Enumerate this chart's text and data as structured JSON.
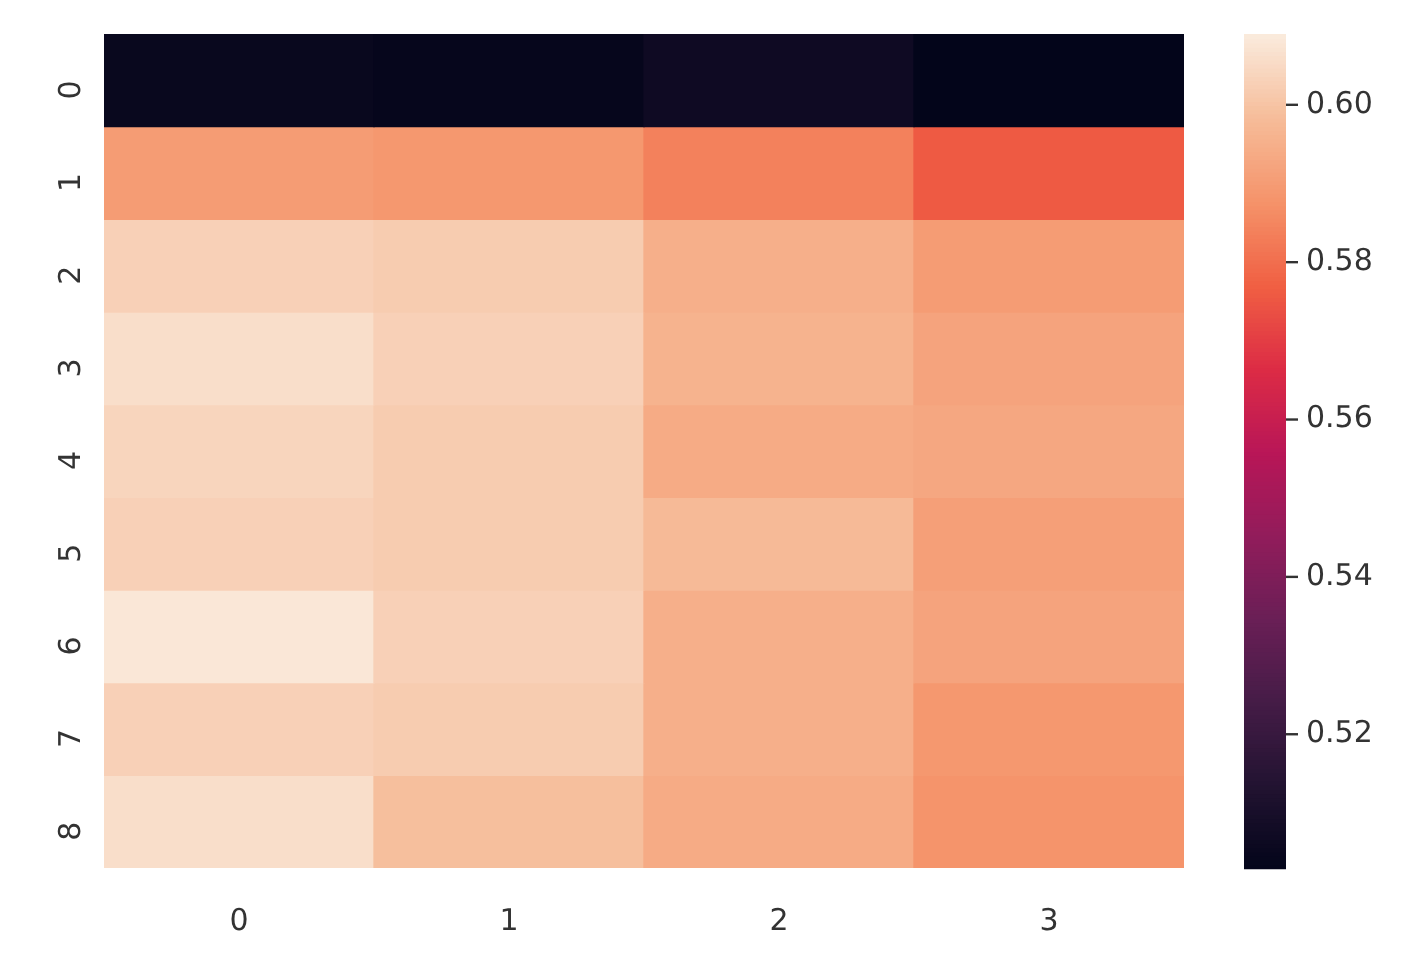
{
  "chart_data": {
    "type": "heatmap",
    "categories": [
      "0",
      "1",
      "2",
      "3"
    ],
    "y_categories": [
      "0",
      "1",
      "2",
      "3",
      "4",
      "5",
      "6",
      "7",
      "8"
    ],
    "cells": [
      [
        0.505,
        0.504,
        0.507,
        0.503
      ],
      [
        0.59,
        0.589,
        0.584,
        0.576
      ],
      [
        0.603,
        0.602,
        0.595,
        0.59
      ],
      [
        0.606,
        0.603,
        0.596,
        0.592
      ],
      [
        0.604,
        0.602,
        0.594,
        0.593
      ],
      [
        0.603,
        0.602,
        0.598,
        0.591
      ],
      [
        0.608,
        0.603,
        0.595,
        0.592
      ],
      [
        0.603,
        0.602,
        0.595,
        0.589
      ],
      [
        0.606,
        0.599,
        0.594,
        0.588
      ]
    ],
    "clim": [
      0.503,
      0.609
    ],
    "cticks": [
      0.52,
      0.54,
      0.56,
      0.58,
      {
        "value": 0.6,
        "label": "0.60"
      }
    ]
  }
}
